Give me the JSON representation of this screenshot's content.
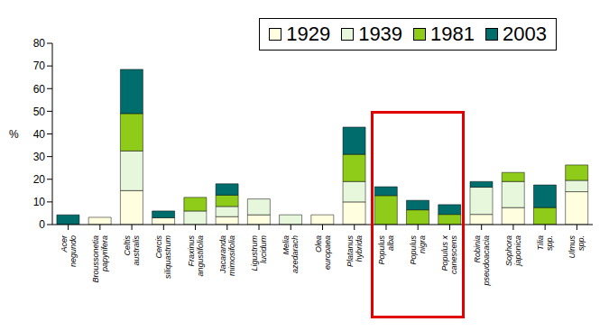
{
  "chart_data": {
    "type": "bar",
    "stacked": true,
    "y_label": "%",
    "categories": [
      "Acer negundo",
      "Broussonetia papyrifera",
      "Celtis australis",
      "Cercis siliquastrum",
      "Fraxinus angustifolia",
      "Jacaranda mimosifolia",
      "Ligustrum lucidum",
      "Melia azedarach",
      "Olea europaea",
      "Platanus hybrida",
      "Populus alba",
      "Populus nigra",
      "Populus x canescens",
      "Robinia pseudoacacia",
      "Sophora japonica",
      "Tilia spp.",
      "Ulmus spp."
    ],
    "series": [
      {
        "name": "1929",
        "color": "#ffffe0",
        "values": [
          0,
          3.2,
          15,
          3,
          0,
          3.5,
          4.3,
          0,
          4.3,
          10,
          0,
          0,
          0,
          4.5,
          7.5,
          0,
          14.5
        ]
      },
      {
        "name": "1939",
        "color": "#e6f7dc",
        "values": [
          0,
          0,
          17.5,
          0,
          6,
          4.5,
          7,
          4.3,
          0,
          9,
          0,
          0,
          0,
          12,
          11.5,
          0,
          5
        ]
      },
      {
        "name": "1981",
        "color": "#8fcc1a",
        "values": [
          0,
          0,
          16.5,
          0,
          6,
          5,
          0,
          0,
          0,
          12,
          12.8,
          6.5,
          4.5,
          0,
          4,
          7.5,
          6.8
        ]
      },
      {
        "name": "2003",
        "color": "#006d6d",
        "values": [
          4.3,
          0,
          19.5,
          3,
          0,
          5,
          0,
          0,
          0,
          12,
          3.9,
          4.2,
          4.3,
          2.5,
          0,
          10,
          0
        ]
      }
    ],
    "ylim": [
      0,
      80
    ],
    "yticks": [
      0,
      10,
      20,
      30,
      40,
      50,
      60,
      70,
      80
    ],
    "grid": false,
    "legend": "top-right"
  }
}
